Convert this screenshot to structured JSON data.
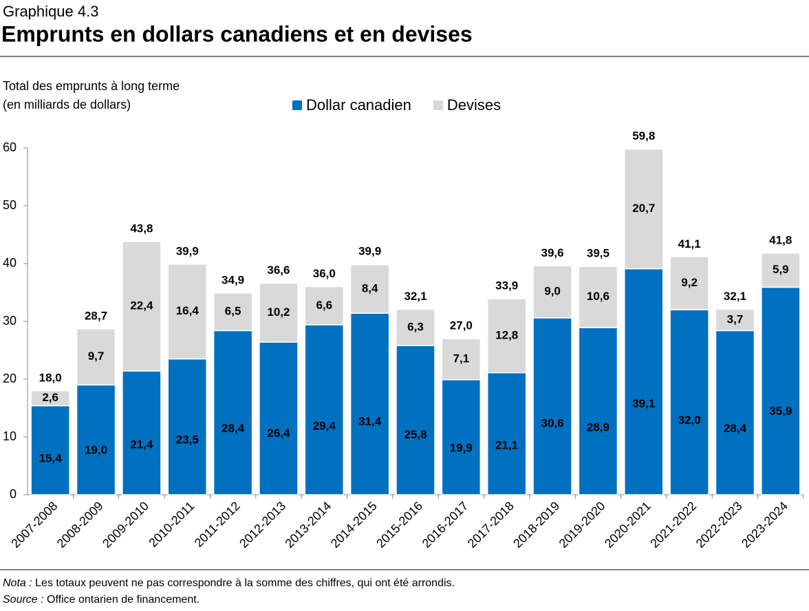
{
  "header": {
    "label": "Graphique 4.3",
    "title": "Emprunts en dollars canadiens et en devises"
  },
  "chart_data": {
    "type": "stacked-bar",
    "ylabel": [
      "Total des emprunts à long terme",
      "(en milliards de dollars)"
    ],
    "categories": [
      "2007-2008",
      "2008-2009",
      "2009-2010",
      "2010-2011",
      "2011-2012",
      "2012-2013",
      "2013-2014",
      "2014-2015",
      "2015-2016",
      "2016-2017",
      "2017-2018",
      "2018-2019",
      "2019-2020",
      "2020-2021",
      "2021-2022",
      "2022-2023",
      "2023-2024"
    ],
    "series": [
      {
        "name": "Dollar canadien",
        "color": "#0070c0",
        "values": [
          15.4,
          19.0,
          21.4,
          23.5,
          28.4,
          26.4,
          29.4,
          31.4,
          25.8,
          19.9,
          21.1,
          30.6,
          28.9,
          39.1,
          32.0,
          28.4,
          35.9
        ],
        "value_labels": [
          "15,4",
          "19,0",
          "21,4",
          "23,5",
          "28,4",
          "26,4",
          "29,4",
          "31,4",
          "25,8",
          "19,9",
          "21,1",
          "30,6",
          "28,9",
          "39,1",
          "32,0",
          "28,4",
          "35,9"
        ]
      },
      {
        "name": "Devises",
        "color": "#d9d9d9",
        "values": [
          2.6,
          9.7,
          22.4,
          16.4,
          6.5,
          10.2,
          6.6,
          8.4,
          6.3,
          7.1,
          12.8,
          9.0,
          10.6,
          20.7,
          9.2,
          3.7,
          5.9
        ],
        "value_labels": [
          "2,6",
          "9,7",
          "22,4",
          "16,4",
          "6,5",
          "10,2",
          "6,6",
          "8,4",
          "6,3",
          "7,1",
          "12,8",
          "9,0",
          "10,6",
          "20,7",
          "9,2",
          "3,7",
          "5,9"
        ]
      }
    ],
    "totals": [
      18.0,
      28.7,
      43.8,
      39.9,
      34.9,
      36.6,
      36.0,
      39.9,
      32.1,
      27.0,
      33.9,
      39.6,
      39.5,
      59.8,
      41.1,
      32.1,
      41.8
    ],
    "total_labels": [
      "18,0",
      "28,7",
      "43,8",
      "39,9",
      "34,9",
      "36,6",
      "36,0",
      "39,9",
      "32,1",
      "27,0",
      "33,9",
      "39,6",
      "39,5",
      "59,8",
      "41,1",
      "32,1",
      "41,8"
    ],
    "ylim": [
      0,
      60
    ],
    "yticks": [
      0,
      10,
      20,
      30,
      40,
      50,
      60
    ]
  },
  "notes": [
    {
      "label": "Nota :",
      "text": "Les totaux peuvent ne pas correspondre à la somme des chiffres, qui ont été arrondis."
    },
    {
      "label": "Source :",
      "text": "Office ontarien de financement."
    }
  ]
}
